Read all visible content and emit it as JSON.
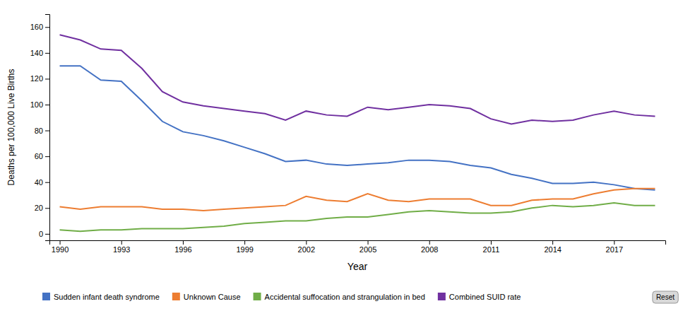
{
  "chart_data": {
    "type": "line",
    "x": [
      1990,
      1991,
      1992,
      1993,
      1994,
      1995,
      1996,
      1997,
      1998,
      1999,
      2000,
      2001,
      2002,
      2003,
      2004,
      2005,
      2006,
      2007,
      2008,
      2009,
      2010,
      2011,
      2012,
      2013,
      2014,
      2015,
      2016,
      2017,
      2018,
      2019
    ],
    "series": [
      {
        "name": "Sudden infant death syndrome",
        "color": "#4472c4",
        "values": [
          130,
          130,
          119,
          118,
          103,
          87,
          79,
          76,
          72,
          67,
          62,
          56,
          57,
          54,
          53,
          54,
          55,
          57,
          57,
          56,
          53,
          51,
          46,
          43,
          39,
          39,
          40,
          38,
          35,
          34
        ]
      },
      {
        "name": "Unknown Cause",
        "color": "#ed7d31",
        "values": [
          21,
          19,
          21,
          21,
          21,
          19,
          19,
          18,
          19,
          20,
          21,
          22,
          29,
          26,
          25,
          31,
          26,
          25,
          27,
          27,
          27,
          22,
          22,
          26,
          27,
          27,
          31,
          34,
          35,
          35
        ]
      },
      {
        "name": "Accidental suffocation and strangulation in bed",
        "color": "#70ad47",
        "values": [
          3,
          2,
          3,
          3,
          4,
          4,
          4,
          5,
          6,
          8,
          9,
          10,
          10,
          12,
          13,
          13,
          15,
          17,
          18,
          17,
          16,
          16,
          17,
          20,
          22,
          21,
          22,
          24,
          22,
          22
        ]
      },
      {
        "name": "Combined SUID rate",
        "color": "#7030a0",
        "values": [
          154,
          150,
          143,
          142,
          128,
          110,
          102,
          99,
          97,
          95,
          93,
          88,
          95,
          92,
          91,
          98,
          96,
          98,
          100,
          99,
          97,
          89,
          85,
          88,
          87,
          88,
          92,
          95,
          92,
          91
        ]
      }
    ],
    "xlabel": "Year",
    "ylabel": "Deaths per 100,000 Live Births",
    "xlim": [
      1989.5,
      2019.5
    ],
    "xticks": [
      1990,
      1993,
      1996,
      1999,
      2002,
      2005,
      2008,
      2011,
      2014,
      2017
    ],
    "ylim": [
      -5,
      170
    ],
    "yticks": [
      0,
      20,
      40,
      60,
      80,
      100,
      120,
      140,
      160
    ],
    "grid": false,
    "legend": "bottom",
    "annotations": [
      "Reset"
    ]
  }
}
